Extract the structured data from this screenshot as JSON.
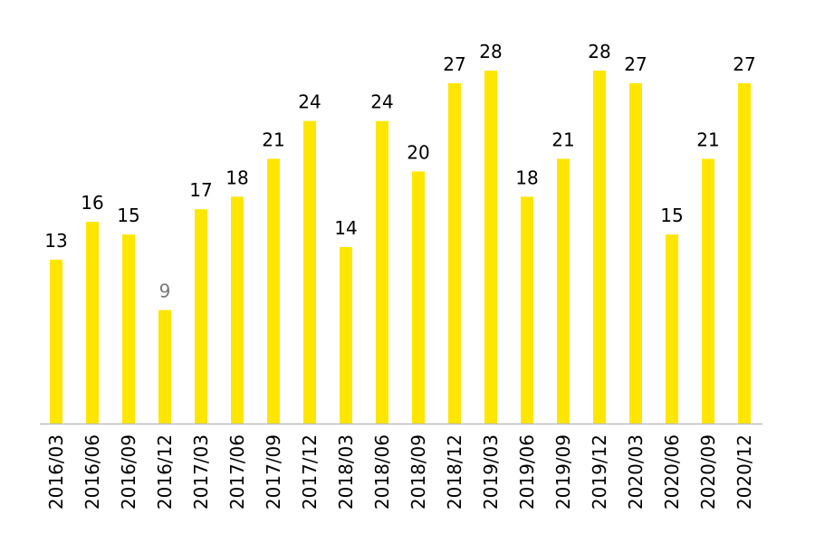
{
  "chart_data": {
    "type": "bar",
    "categories": [
      "2016/03",
      "2016/06",
      "2016/09",
      "2016/12",
      "2017/03",
      "2017/06",
      "2017/09",
      "2017/12",
      "2018/03",
      "2018/06",
      "2018/09",
      "2018/12",
      "2019/03",
      "2019/06",
      "2019/09",
      "2019/12",
      "2020/03",
      "2020/06",
      "2020/09",
      "2020/12"
    ],
    "values": [
      13,
      16,
      15,
      9,
      17,
      18,
      21,
      24,
      14,
      24,
      20,
      27,
      28,
      18,
      21,
      28,
      27,
      15,
      21,
      27
    ],
    "ylim": [
      0,
      28
    ],
    "grid": false,
    "legend": "none",
    "colors": {
      "bar": "#FFE600",
      "label": "#000000",
      "label_muted": "#777777",
      "axis": "#bdbdbd"
    },
    "muted_label_indices": [
      3
    ]
  }
}
